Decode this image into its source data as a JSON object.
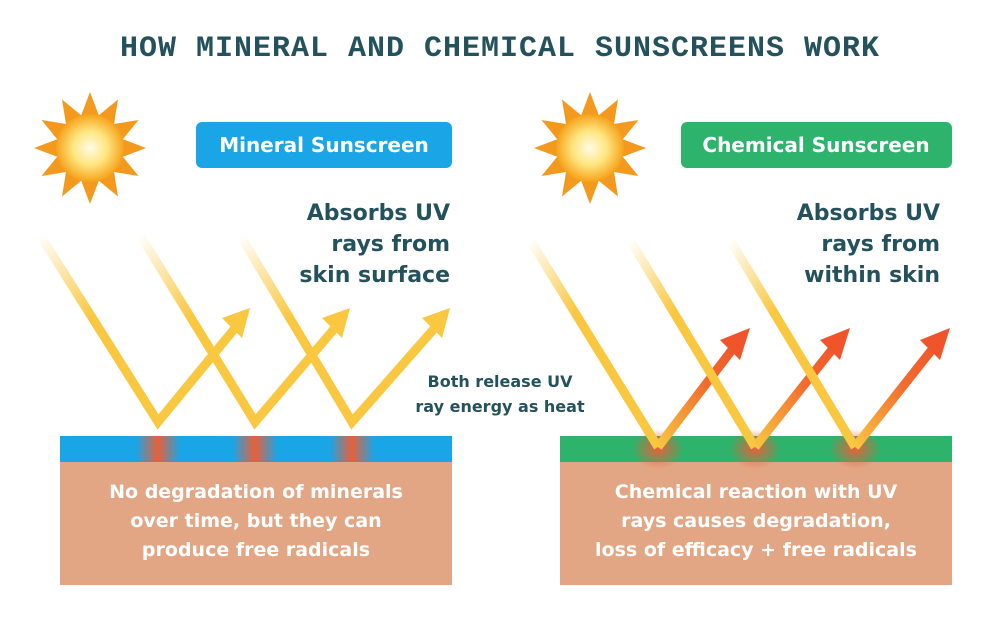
{
  "title": "HOW MINERAL AND CHEMICAL SUNSCREENS WORK",
  "panels": [
    {
      "label": "Mineral Sunscreen",
      "description_lines": [
        "Absorbs UV",
        "rays from",
        "skin surface"
      ],
      "caption_lines": [
        "No degradation of minerals",
        "over time, but they can",
        "produce free radicals"
      ]
    },
    {
      "label": "Chemical Sunscreen",
      "description_lines": [
        "Absorbs UV",
        "rays from",
        "within skin"
      ],
      "caption_lines": [
        "Chemical reaction with UV",
        "rays causes degradation,",
        "loss of efficacy + free radicals"
      ]
    }
  ],
  "center_note_lines": [
    "Both release UV",
    "ray energy as heat"
  ]
}
